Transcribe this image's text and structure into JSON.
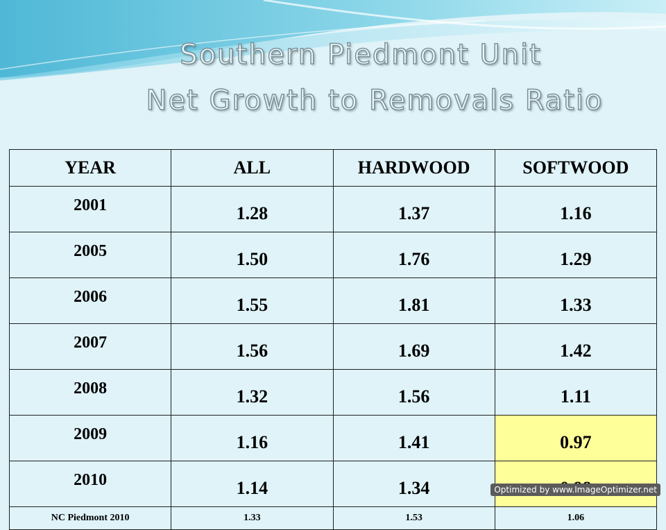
{
  "title": {
    "line1": "Southern Piedmont Unit",
    "line2": "Net Growth to Removals Ratio"
  },
  "table": {
    "headers": [
      "YEAR",
      "ALL",
      "HARDWOOD",
      "SOFTWOOD"
    ],
    "rows": [
      [
        "2001",
        "1.28",
        "1.37",
        "1.16"
      ],
      [
        "2005",
        "1.50",
        "1.76",
        "1.29"
      ],
      [
        "2006",
        "1.55",
        "1.81",
        "1.33"
      ],
      [
        "2007",
        "1.56",
        "1.69",
        "1.42"
      ],
      [
        "2008",
        "1.32",
        "1.56",
        "1.11"
      ],
      [
        "2009",
        "1.16",
        "1.41",
        "0.97"
      ],
      [
        "2010",
        "1.14",
        "1.34",
        "0.98"
      ]
    ],
    "footer_row": [
      "NC Piedmont 2010",
      "1.33",
      "1.53",
      "1.06"
    ],
    "highlight_color": "#ffff99"
  },
  "badge": "Optimized by www.ImageOptimizer.net"
}
